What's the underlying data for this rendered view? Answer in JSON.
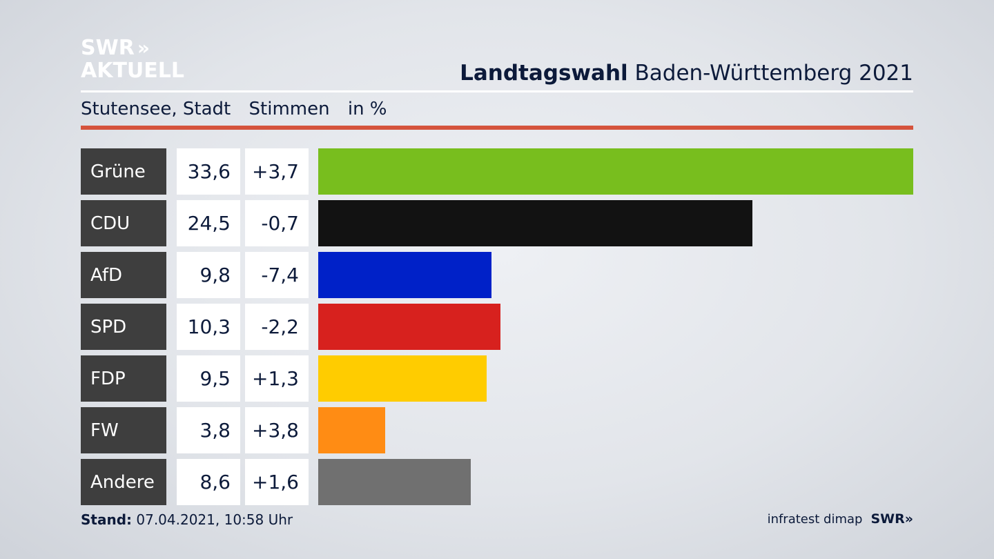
{
  "logo": {
    "line1": "SWR",
    "chevrons": "»",
    "line2": "AKTUELL"
  },
  "title": {
    "bold": "Landtagswahl",
    "rest": " Baden-Württemberg 2021"
  },
  "subhead": {
    "location": "Stutensee, Stadt",
    "metric": "Stimmen",
    "unit": "in %"
  },
  "footer": {
    "stand_label": "Stand:",
    "stand_value": " 07.04.2021, 10:58 Uhr",
    "source": "infratest dimap",
    "brand": "SWR»"
  },
  "chart_data": {
    "type": "bar",
    "orientation": "horizontal",
    "categories": [
      "Grüne",
      "CDU",
      "AfD",
      "SPD",
      "FDP",
      "FW",
      "Andere"
    ],
    "values": [
      33.6,
      24.5,
      9.8,
      10.3,
      9.5,
      3.8,
      8.6
    ],
    "value_labels": [
      "33,6",
      "24,5",
      "9,8",
      "10,3",
      "9,5",
      "3,8",
      "8,6"
    ],
    "diff_labels": [
      "+3,7",
      "-0,7",
      "-7,4",
      "-2,2",
      "+1,3",
      "+3,8",
      "+1,6"
    ],
    "colors": [
      "#78be1e",
      "#121212",
      "#0021c8",
      "#d7211e",
      "#ffcc00",
      "#ff8c14",
      "#707070"
    ],
    "xlim": [
      0,
      33.6
    ]
  }
}
